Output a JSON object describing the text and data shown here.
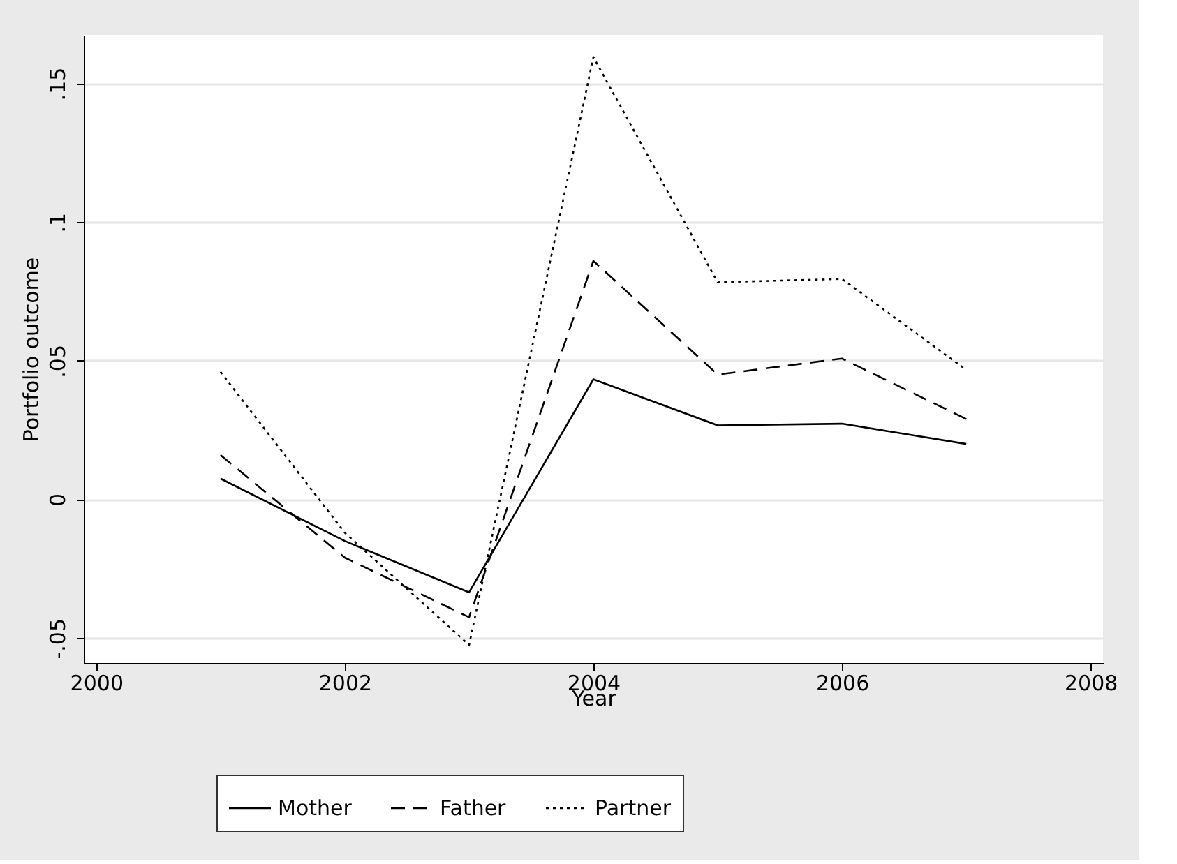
{
  "chart_data": {
    "type": "line",
    "xlabel": "Year",
    "ylabel": "Portfolio outcome",
    "x": [
      2001,
      2002,
      2003,
      2004,
      2005,
      2006,
      2007
    ],
    "series": [
      {
        "name": "Mother",
        "color": "#000000",
        "line_style": "solid",
        "values": [
          0.0075,
          -0.015,
          -0.0335,
          0.0433,
          0.0267,
          0.0273,
          0.02
        ]
      },
      {
        "name": "Father",
        "color": "#000000",
        "line_style": "dashed",
        "values": [
          0.016,
          -0.021,
          -0.0425,
          0.086,
          0.045,
          0.0508,
          0.029
        ]
      },
      {
        "name": "Partner",
        "color": "#000000",
        "line_style": "dotted",
        "values": [
          0.046,
          -0.012,
          -0.0525,
          0.1595,
          0.0783,
          0.0795,
          0.0467
        ]
      }
    ],
    "xlim": [
      1999.9,
      2008.1
    ],
    "xticks": [
      2000,
      2002,
      2004,
      2006,
      2008
    ],
    "ylim": [
      -0.059,
      0.1675
    ],
    "yticks": [
      {
        "value": -0.05,
        "label": "-.05"
      },
      {
        "value": 0,
        "label": "0"
      },
      {
        "value": 0.05,
        "label": ".05"
      },
      {
        "value": 0.1,
        "label": ".1"
      },
      {
        "value": 0.15,
        "label": ".15"
      }
    ],
    "grid": "y",
    "legend": "bottom",
    "marker": "none"
  }
}
